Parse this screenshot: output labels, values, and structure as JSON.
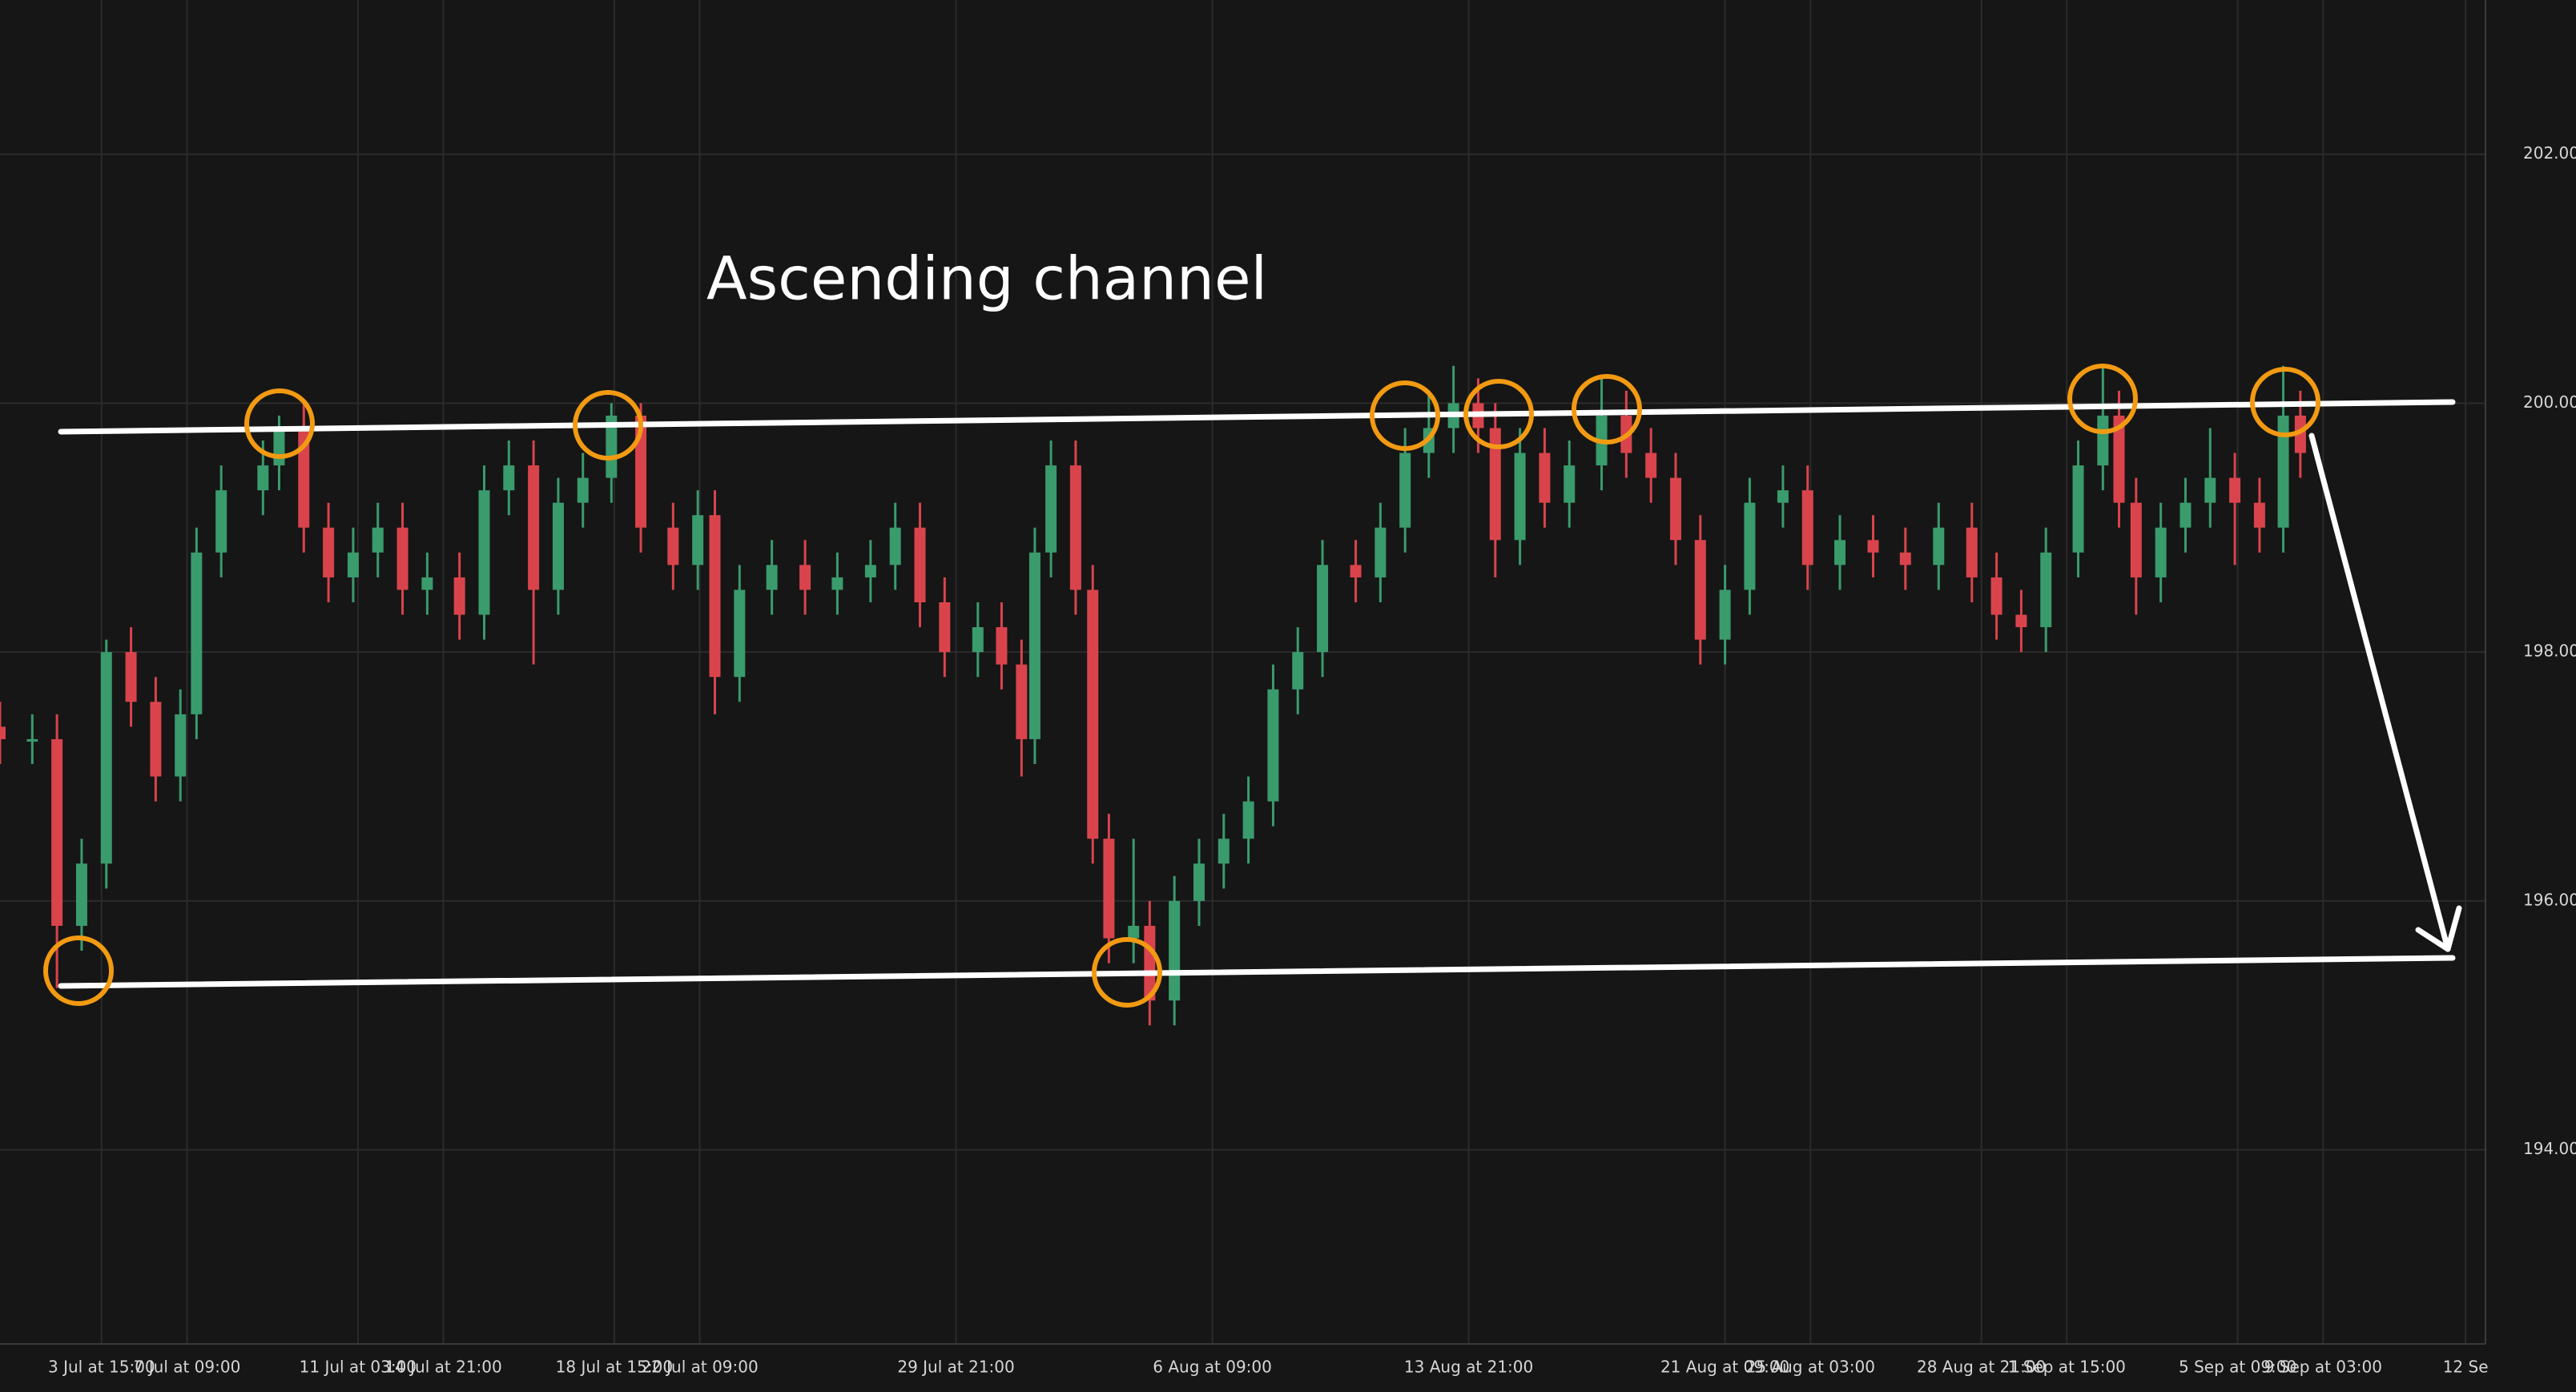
{
  "chart_data": {
    "type": "candlestick",
    "title": "Ascending channel",
    "up_color": "#3a9b6c",
    "down_color": "#d9444c",
    "grid": true,
    "xlim": [
      -107,
      2511
    ],
    "ylim": [
      192.44,
      203.24
    ],
    "yticks": [
      {
        "value": 194,
        "label": "194.000"
      },
      {
        "value": 196,
        "label": "196.000"
      },
      {
        "value": 198,
        "label": "198.000"
      },
      {
        "value": 200,
        "label": "200.000"
      },
      {
        "value": 202,
        "label": "202.000"
      }
    ],
    "xticks": [
      {
        "value": 0,
        "label": "3 Jul at 15:00"
      },
      {
        "value": 90,
        "label": "7 Jul at 09:00"
      },
      {
        "value": 270,
        "label": "11 Jul at 03:00"
      },
      {
        "value": 360,
        "label": "14 Jul at 21:00"
      },
      {
        "value": 540,
        "label": "18 Jul at 15:00"
      },
      {
        "value": 630,
        "label": "22 Jul at 09:00"
      },
      {
        "value": 900,
        "label": "29 Jul at 21:00"
      },
      {
        "value": 1170,
        "label": "6 Aug at 09:00"
      },
      {
        "value": 1440,
        "label": "13 Aug at 21:00"
      },
      {
        "value": 1710,
        "label": "21 Aug at 09:00"
      },
      {
        "value": 1800,
        "label": "25 Aug at 03:00"
      },
      {
        "value": 1980,
        "label": "28 Aug at 21:00"
      },
      {
        "value": 2070,
        "label": "1 Sep at 15:00"
      },
      {
        "value": 2250,
        "label": "5 Sep at 09:00"
      },
      {
        "value": 2340,
        "label": "9 Sep at 03:00"
      },
      {
        "value": 2490,
        "label": "12 Se"
      }
    ],
    "x": [
      -107,
      -73,
      -47,
      -21,
      5,
      31,
      57,
      83,
      100,
      126,
      170,
      187,
      213,
      239,
      265,
      291,
      317,
      343,
      377,
      403,
      429,
      455,
      481,
      507,
      537,
      568,
      602,
      628,
      646,
      672,
      706,
      741,
      775,
      810,
      836,
      862,
      888,
      923,
      948,
      969,
      983,
      1000,
      1026,
      1044,
      1061,
      1087,
      1104,
      1130,
      1156,
      1182,
      1208,
      1234,
      1260,
      1286,
      1321,
      1347,
      1373,
      1398,
      1424,
      1450,
      1468,
      1494,
      1520,
      1546,
      1580,
      1606,
      1632,
      1658,
      1684,
      1710,
      1736,
      1771,
      1797,
      1831,
      1866,
      1900,
      1935,
      1970,
      1996,
      2022,
      2048,
      2082,
      2108,
      2125,
      2143,
      2169,
      2195,
      2221,
      2247,
      2273,
      2298,
      2316
    ],
    "open": [
      197.4,
      197.3,
      197.3,
      195.8,
      196.3,
      198.0,
      197.6,
      197.0,
      197.5,
      198.8,
      199.3,
      199.5,
      199.8,
      199.0,
      198.6,
      198.8,
      199.0,
      198.5,
      198.6,
      198.3,
      199.3,
      199.5,
      198.5,
      199.2,
      199.4,
      199.9,
      199.0,
      198.7,
      199.1,
      197.8,
      198.5,
      198.7,
      198.5,
      198.6,
      198.7,
      199.0,
      198.4,
      198.0,
      198.2,
      197.9,
      197.3,
      198.8,
      199.5,
      198.5,
      196.5,
      195.7,
      195.8,
      195.2,
      196.0,
      196.3,
      196.5,
      196.8,
      197.7,
      198.0,
      198.7,
      198.6,
      199.0,
      199.6,
      199.8,
      200.0,
      199.8,
      198.9,
      199.6,
      199.2,
      199.5,
      199.9,
      199.6,
      199.4,
      198.9,
      198.1,
      198.5,
      199.2,
      199.3,
      198.7,
      198.9,
      198.8,
      198.7,
      199.0,
      198.6,
      198.3,
      198.2,
      198.8,
      199.5,
      199.9,
      199.2,
      198.6,
      199.0,
      199.2,
      199.4,
      199.2,
      199.0,
      199.9
    ],
    "high": [
      197.6,
      197.5,
      197.5,
      196.5,
      198.1,
      198.2,
      197.8,
      197.7,
      199.0,
      199.5,
      199.7,
      199.9,
      200.0,
      199.2,
      199.0,
      199.2,
      199.2,
      198.8,
      198.8,
      199.5,
      199.7,
      199.7,
      199.4,
      199.6,
      200.0,
      200.0,
      199.2,
      199.3,
      199.3,
      198.7,
      198.9,
      198.9,
      198.8,
      198.9,
      199.2,
      199.2,
      198.6,
      198.4,
      198.4,
      198.1,
      199.0,
      199.7,
      199.7,
      198.7,
      196.7,
      196.5,
      196.0,
      196.2,
      196.5,
      196.7,
      197.0,
      197.9,
      198.2,
      198.9,
      198.9,
      199.2,
      199.8,
      200.1,
      200.3,
      200.2,
      200.0,
      199.8,
      199.8,
      199.7,
      200.2,
      200.1,
      199.8,
      199.6,
      199.1,
      198.7,
      199.4,
      199.5,
      199.5,
      199.1,
      199.1,
      199.0,
      199.2,
      199.2,
      198.8,
      198.5,
      199.0,
      199.7,
      200.3,
      200.1,
      199.4,
      199.2,
      199.4,
      199.8,
      199.6,
      199.4,
      200.3,
      200.1
    ],
    "low": [
      197.1,
      197.1,
      195.3,
      195.6,
      196.1,
      197.4,
      196.8,
      196.8,
      197.3,
      198.6,
      199.1,
      199.3,
      198.8,
      198.4,
      198.4,
      198.6,
      198.3,
      198.3,
      198.1,
      198.1,
      199.1,
      197.9,
      198.3,
      199.0,
      199.2,
      198.8,
      198.5,
      198.5,
      197.5,
      197.6,
      198.3,
      198.3,
      198.3,
      198.4,
      198.5,
      198.2,
      197.8,
      197.8,
      197.7,
      197.0,
      197.1,
      198.6,
      198.3,
      196.3,
      195.5,
      195.5,
      195.0,
      195.0,
      195.8,
      196.1,
      196.3,
      196.6,
      197.5,
      197.8,
      198.4,
      198.4,
      198.8,
      199.4,
      199.6,
      199.6,
      198.6,
      198.7,
      199.0,
      199.0,
      199.3,
      199.4,
      199.2,
      198.7,
      197.9,
      197.9,
      198.3,
      199.0,
      198.5,
      198.5,
      198.6,
      198.5,
      198.5,
      198.4,
      198.1,
      198.0,
      198.0,
      198.6,
      199.3,
      199.0,
      198.3,
      198.4,
      198.8,
      199.0,
      198.7,
      198.8,
      198.8,
      199.4
    ],
    "close": [
      197.3,
      197.3,
      195.8,
      196.3,
      198.0,
      197.6,
      197.0,
      197.5,
      198.8,
      199.3,
      199.5,
      199.8,
      199.0,
      198.6,
      198.8,
      199.0,
      198.5,
      198.6,
      198.3,
      199.3,
      199.5,
      198.5,
      199.2,
      199.4,
      199.9,
      199.0,
      198.7,
      199.1,
      197.8,
      198.5,
      198.7,
      198.5,
      198.6,
      198.7,
      199.0,
      198.4,
      198.0,
      198.2,
      197.9,
      197.3,
      198.8,
      199.5,
      198.5,
      196.5,
      195.7,
      195.8,
      195.2,
      196.0,
      196.3,
      196.5,
      196.8,
      197.7,
      198.0,
      198.7,
      198.6,
      199.0,
      199.6,
      199.8,
      200.0,
      199.8,
      198.9,
      199.6,
      199.2,
      199.5,
      199.9,
      199.6,
      199.4,
      198.9,
      198.1,
      198.5,
      199.2,
      199.3,
      198.7,
      198.9,
      198.8,
      198.7,
      199.0,
      198.6,
      198.3,
      198.2,
      198.8,
      199.5,
      199.9,
      199.2,
      198.6,
      199.0,
      199.2,
      199.4,
      199.2,
      199.0,
      199.9,
      199.6
    ]
  }
}
